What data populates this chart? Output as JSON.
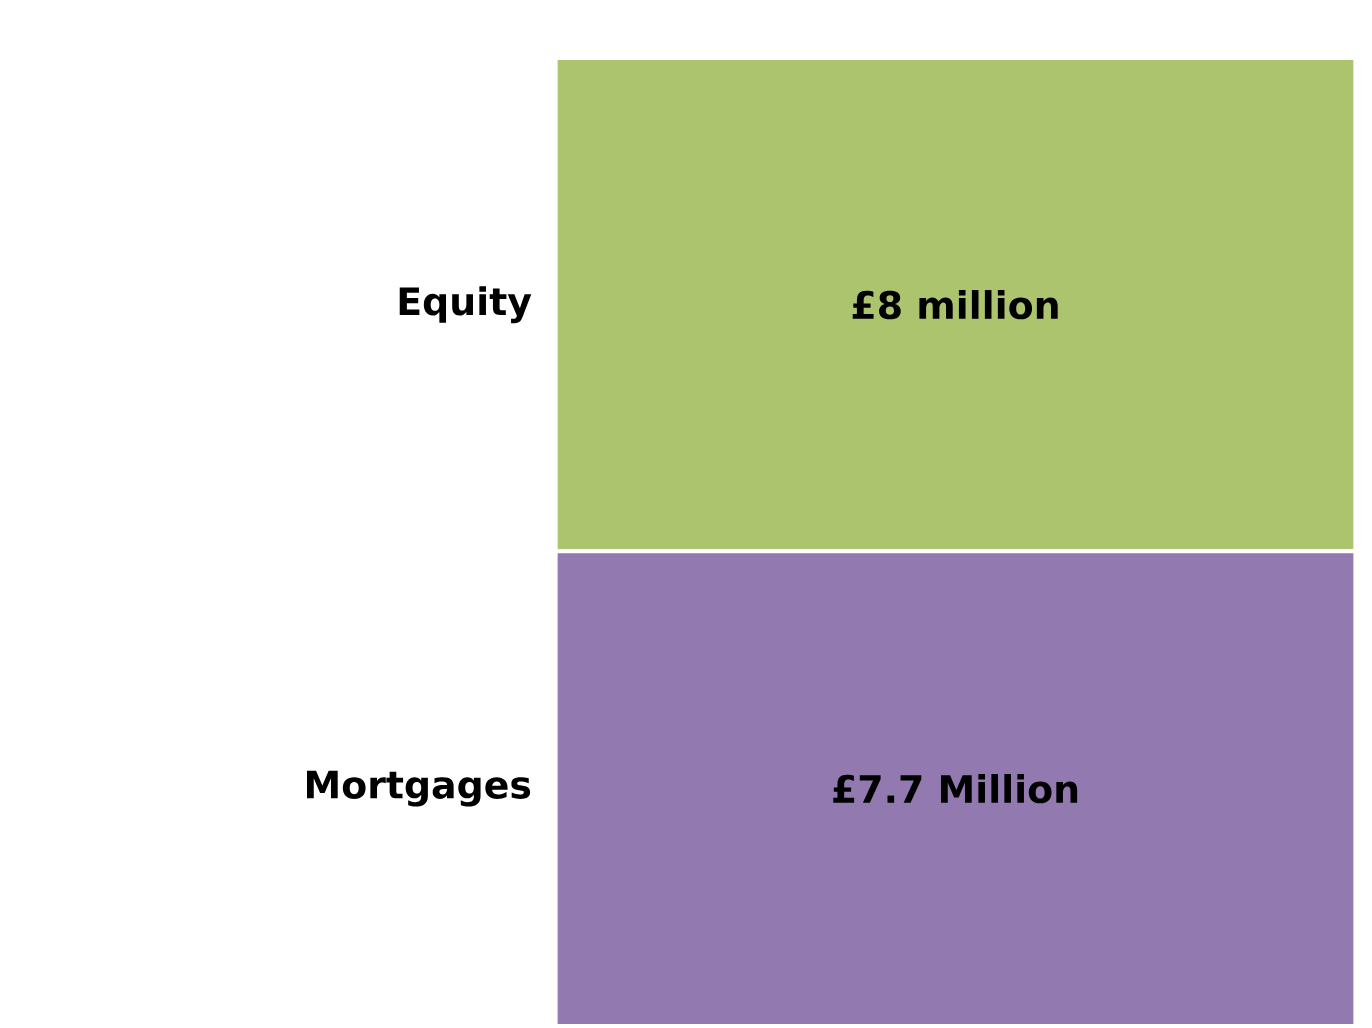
{
  "chart_data": {
    "type": "bar",
    "stacked": true,
    "categories": [
      null
    ],
    "series": [
      {
        "name": "Mortgages",
        "color": "#9279b0",
        "values": [
          7.7
        ],
        "value_labels": [
          "£7.7 Million"
        ]
      },
      {
        "name": "Equity",
        "color": "#adc46e",
        "values": [
          8
        ],
        "value_labels": [
          "£8 million"
        ]
      }
    ]
  }
}
